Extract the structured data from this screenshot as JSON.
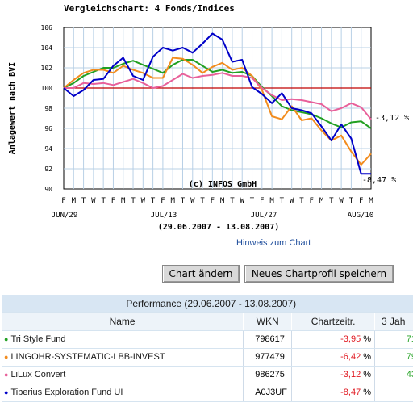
{
  "chart": {
    "title": "Vergleichschart: 4 Fonds/Indices",
    "ylabel": "Anlagewert nach BVI",
    "watermark": "(c) INFOS GmbH",
    "range_label": "(29.06.2007 - 13.08.2007)",
    "day_letters": [
      "F",
      "M",
      "T",
      "W",
      "T",
      "F",
      "M",
      "T",
      "W",
      "T",
      "F",
      "M",
      "T",
      "W",
      "T",
      "F",
      "M",
      "T",
      "W",
      "T",
      "F",
      "M",
      "T",
      "W",
      "T",
      "F",
      "M",
      "T",
      "W",
      "T",
      "F",
      "M"
    ],
    "date_labels": [
      "JUN/29",
      "JUL/13",
      "JUL/27",
      "AUG/10"
    ],
    "end_labels": [
      "-3,12 %",
      "-8,47 %"
    ]
  },
  "chart_data": {
    "type": "line",
    "title": "Vergleichschart: 4 Fonds/Indices",
    "xlabel": "",
    "ylabel": "Anlagewert nach BVI",
    "ylim": [
      90,
      106
    ],
    "yticks": [
      90,
      92,
      94,
      96,
      98,
      100,
      102,
      104,
      106
    ],
    "grid": true,
    "x": [
      "2007-06-29",
      "2007-07-02",
      "2007-07-03",
      "2007-07-04",
      "2007-07-05",
      "2007-07-06",
      "2007-07-09",
      "2007-07-10",
      "2007-07-11",
      "2007-07-12",
      "2007-07-13",
      "2007-07-16",
      "2007-07-17",
      "2007-07-18",
      "2007-07-19",
      "2007-07-20",
      "2007-07-23",
      "2007-07-24",
      "2007-07-25",
      "2007-07-26",
      "2007-07-27",
      "2007-07-30",
      "2007-07-31",
      "2007-08-01",
      "2007-08-02",
      "2007-08-03",
      "2007-08-06",
      "2007-08-07",
      "2007-08-08",
      "2007-08-09",
      "2007-08-10",
      "2007-08-13"
    ],
    "reference_line": 100,
    "series": [
      {
        "name": "Tri Style Fund",
        "color": "#22a022",
        "values": [
          100,
          100.5,
          101.2,
          101.6,
          102.0,
          102.0,
          102.4,
          102.7,
          102.3,
          101.9,
          101.5,
          102.3,
          102.8,
          102.8,
          102.2,
          101.6,
          101.8,
          101.5,
          101.6,
          101.2,
          100.1,
          99.2,
          98.2,
          97.8,
          97.6,
          97.4,
          97.0,
          96.5,
          96.1,
          96.6,
          96.7,
          96.0
        ]
      },
      {
        "name": "LINGOHR-SYSTEMATIC-LBB-INVEST",
        "color": "#f28c1e",
        "values": [
          100,
          100.8,
          101.5,
          101.8,
          101.8,
          101.5,
          102.2,
          101.8,
          101.5,
          101.0,
          101.0,
          103.0,
          102.9,
          102.3,
          101.5,
          102.1,
          102.5,
          101.8,
          102.0,
          101.2,
          99.8,
          97.2,
          96.9,
          98.2,
          96.8,
          97.0,
          95.8,
          94.8,
          95.3,
          93.7,
          92.4,
          93.5
        ]
      },
      {
        "name": "LiLux Convert",
        "color": "#e8609a",
        "values": [
          100,
          100.0,
          100.5,
          100.4,
          100.5,
          100.3,
          100.6,
          100.9,
          100.5,
          100.0,
          100.2,
          100.8,
          101.4,
          101.0,
          101.2,
          101.3,
          101.5,
          101.2,
          101.2,
          101.0,
          100.0,
          99.3,
          98.8,
          98.9,
          98.8,
          98.6,
          98.4,
          97.7,
          98.0,
          98.5,
          98.1,
          96.9
        ]
      },
      {
        "name": "Tiberius Exploration Fund UI",
        "color": "#0000c8",
        "values": [
          100,
          99.2,
          99.8,
          100.8,
          100.9,
          102.2,
          103.0,
          101.2,
          100.8,
          103.1,
          104.0,
          103.7,
          104.0,
          103.5,
          104.4,
          105.4,
          104.8,
          102.6,
          102.8,
          100.1,
          99.4,
          98.5,
          99.5,
          98.0,
          97.8,
          97.5,
          96.2,
          94.8,
          96.4,
          95.0,
          91.5,
          91.5
        ]
      }
    ]
  },
  "hint_link": "Hinweis zum Chart",
  "buttons": {
    "change_chart": "Chart ändern",
    "save_profile": "Neues Chartprofil speichern"
  },
  "table": {
    "title": "Performance (29.06.2007 - 13.08.2007)",
    "headers": [
      "Name",
      "WKN",
      "Chartzeitr.",
      "3 Jah"
    ],
    "rows": [
      {
        "name": "Tri Style Fund",
        "color": "#22a022",
        "wkn": "798617",
        "change": "-3,95",
        "pct": "%",
        "three_year": "71,"
      },
      {
        "name": "LINGOHR-SYSTEMATIC-LBB-INVEST",
        "color": "#f28c1e",
        "wkn": "977479",
        "change": "-6,42",
        "pct": "%",
        "three_year": "79,"
      },
      {
        "name": "LiLux Convert",
        "color": "#e8609a",
        "wkn": "986275",
        "change": "-3,12",
        "pct": "%",
        "three_year": "43,"
      },
      {
        "name": "Tiberius Exploration Fund UI",
        "color": "#0000c8",
        "wkn": "A0J3UF",
        "change": "-8,47",
        "pct": "%",
        "three_year": ""
      }
    ]
  }
}
